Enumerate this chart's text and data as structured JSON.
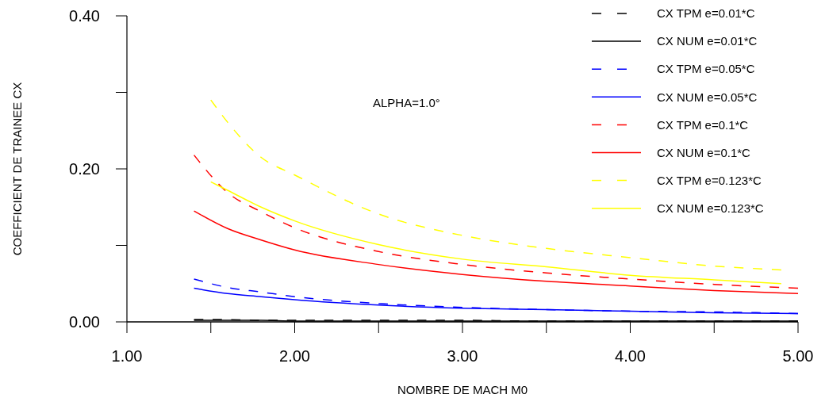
{
  "chart_data": {
    "type": "line",
    "xlabel": "NOMBRE DE MACH M0",
    "ylabel": "COEFFICIENT DE TRAINEE CX",
    "annotations": [
      "ALPHA=1.0°"
    ],
    "xlim": [
      1,
      5
    ],
    "ylim": [
      0,
      0.4
    ],
    "xticks": [
      {
        "value": 1,
        "label": "1.00"
      },
      {
        "value": 1.5,
        "label": null
      },
      {
        "value": 2,
        "label": "2.00"
      },
      {
        "value": 2.5,
        "label": null
      },
      {
        "value": 3,
        "label": "3.00"
      },
      {
        "value": 3.5,
        "label": null
      },
      {
        "value": 4,
        "label": "4.00"
      },
      {
        "value": 4.5,
        "label": null
      },
      {
        "value": 5,
        "label": "5.00"
      }
    ],
    "yticks": [
      {
        "value": 0,
        "label": "0.00"
      },
      {
        "value": 0.1,
        "label": null
      },
      {
        "value": 0.2,
        "label": "0.20"
      },
      {
        "value": 0.3,
        "label": null
      },
      {
        "value": 0.4,
        "label": "0.40"
      }
    ],
    "grid": false,
    "legend": "top right",
    "marker": "none",
    "series": [
      {
        "name": "CX TPM e=0.01*C",
        "color": "#000000",
        "line_style": "dashed",
        "x": [
          1.4,
          1.6,
          1.8,
          2,
          2.5,
          3,
          3.5,
          4,
          4.5,
          5
        ],
        "values": [
          0.003,
          0.003,
          0.002,
          0.002,
          0.002,
          0.002,
          0.001,
          0.001,
          0.001,
          0.001
        ]
      },
      {
        "name": "CX NUM e=0.01*C",
        "color": "#000000",
        "line_style": "solid",
        "x": [
          1.4,
          1.6,
          1.8,
          2,
          2.5,
          3,
          3.5,
          4,
          4.5,
          5
        ],
        "values": [
          0.002,
          0.002,
          0.002,
          0.001,
          0.001,
          0.001,
          0.001,
          0.001,
          0.001,
          0.001
        ]
      },
      {
        "name": "CX TPM e=0.05*C",
        "color": "#0000ff",
        "line_style": "dashed",
        "x": [
          1.4,
          1.6,
          1.8,
          2,
          2.5,
          3,
          3.5,
          4,
          4.5,
          5
        ],
        "values": [
          0.056,
          0.045,
          0.039,
          0.033,
          0.024,
          0.019,
          0.016,
          0.014,
          0.013,
          0.011
        ]
      },
      {
        "name": "CX NUM e=0.05*C",
        "color": "#0000ff",
        "line_style": "solid",
        "x": [
          1.4,
          1.6,
          1.8,
          2,
          2.5,
          3,
          3.5,
          4,
          4.5,
          5
        ],
        "values": [
          0.044,
          0.037,
          0.033,
          0.029,
          0.022,
          0.018,
          0.016,
          0.014,
          0.012,
          0.011
        ]
      },
      {
        "name": "CX TPM e=0.1*C",
        "color": "#ff0000",
        "line_style": "dashed",
        "x": [
          1.4,
          1.6,
          1.8,
          2,
          2.5,
          3,
          3.5,
          4,
          4.5,
          5
        ],
        "values": [
          0.218,
          0.169,
          0.144,
          0.123,
          0.092,
          0.075,
          0.064,
          0.056,
          0.049,
          0.044
        ]
      },
      {
        "name": "CX NUM e=0.1*C",
        "color": "#ff0000",
        "line_style": "solid",
        "x": [
          1.4,
          1.6,
          1.8,
          2,
          2.5,
          3,
          3.5,
          4,
          4.5,
          5
        ],
        "values": [
          0.145,
          0.122,
          0.107,
          0.094,
          0.075,
          0.062,
          0.053,
          0.047,
          0.041,
          0.037
        ]
      },
      {
        "name": "CX TPM e=0.123*C",
        "color": "#ffff00",
        "line_style": "dashed",
        "x": [
          1.5,
          1.6,
          1.8,
          2,
          2.5,
          3,
          3.5,
          4,
          4.5,
          4.9
        ],
        "values": [
          0.29,
          0.261,
          0.215,
          0.192,
          0.141,
          0.113,
          0.096,
          0.084,
          0.073,
          0.068
        ]
      },
      {
        "name": "CX NUM e=0.123*C",
        "color": "#ffff00",
        "line_style": "solid",
        "x": [
          1.5,
          1.6,
          1.8,
          2,
          2.5,
          3,
          3.5,
          4,
          4.5,
          4.9
        ],
        "values": [
          0.183,
          0.172,
          0.15,
          0.132,
          0.101,
          0.082,
          0.072,
          0.061,
          0.055,
          0.05
        ]
      }
    ]
  }
}
